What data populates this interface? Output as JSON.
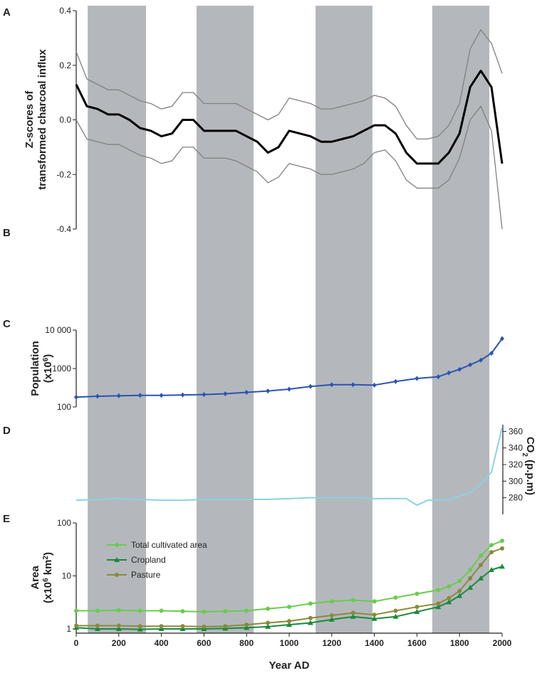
{
  "panel_labels": [
    "A",
    "B",
    "C",
    "D",
    "E"
  ],
  "shaded_periods": [
    [
      54,
      328
    ],
    [
      565,
      833
    ],
    [
      1124,
      1391
    ],
    [
      1672,
      1940
    ]
  ],
  "shade_color": "#b4b8bd",
  "chart_data": [
    {
      "type": "line",
      "ylabel": [
        "Z-scores of",
        "transformed charcoal influx"
      ],
      "xlim": [
        0,
        2000
      ],
      "ylim": [
        -0.4,
        0.4
      ],
      "log_scale": false,
      "y_axis_side": "left",
      "yticks": [
        0.4,
        0.2,
        {
          "value": 0,
          "label": "0.0"
        },
        -0.2,
        -0.4
      ],
      "x": [
        0,
        50,
        100,
        150,
        200,
        250,
        300,
        350,
        400,
        450,
        500,
        550,
        600,
        650,
        700,
        750,
        800,
        850,
        900,
        950,
        1000,
        1050,
        1100,
        1150,
        1200,
        1250,
        1300,
        1350,
        1400,
        1450,
        1500,
        1550,
        1600,
        1650,
        1700,
        1750,
        1800,
        1850,
        1900,
        1950,
        2000
      ],
      "series": [
        {
          "name": "upper",
          "color": "#808080",
          "line_width": 1.3,
          "values": [
            0.25,
            0.15,
            0.13,
            0.11,
            0.11,
            0.09,
            0.07,
            0.06,
            0.04,
            0.05,
            0.1,
            0.1,
            0.06,
            0.06,
            0.06,
            0.06,
            0.04,
            0.02,
            0.0,
            0.02,
            0.08,
            0.07,
            0.06,
            0.04,
            0.04,
            0.05,
            0.06,
            0.07,
            0.09,
            0.08,
            0.05,
            -0.02,
            -0.07,
            -0.07,
            -0.06,
            -0.02,
            0.06,
            0.26,
            0.33,
            0.28,
            0.17
          ]
        },
        {
          "name": "lower",
          "color": "#808080",
          "line_width": 1.3,
          "values": [
            0.0,
            -0.07,
            -0.08,
            -0.09,
            -0.09,
            -0.11,
            -0.13,
            -0.14,
            -0.16,
            -0.15,
            -0.1,
            -0.1,
            -0.14,
            -0.14,
            -0.14,
            -0.15,
            -0.17,
            -0.19,
            -0.23,
            -0.21,
            -0.16,
            -0.17,
            -0.18,
            -0.2,
            -0.2,
            -0.19,
            -0.18,
            -0.16,
            -0.12,
            -0.11,
            -0.15,
            -0.22,
            -0.25,
            -0.25,
            -0.25,
            -0.22,
            -0.14,
            0.0,
            0.05,
            -0.04,
            -0.4
          ]
        },
        {
          "name": "mean",
          "color": "#000000",
          "line_width": 3,
          "values": [
            0.13,
            0.05,
            0.04,
            0.02,
            0.02,
            0.0,
            -0.03,
            -0.04,
            -0.06,
            -0.05,
            0.0,
            0.0,
            -0.04,
            -0.04,
            -0.04,
            -0.04,
            -0.06,
            -0.08,
            -0.12,
            -0.1,
            -0.04,
            -0.05,
            -0.06,
            -0.08,
            -0.08,
            -0.07,
            -0.06,
            -0.04,
            -0.02,
            -0.02,
            -0.05,
            -0.12,
            -0.16,
            -0.16,
            -0.16,
            -0.12,
            -0.05,
            0.12,
            0.18,
            0.12,
            -0.16
          ]
        }
      ]
    },
    {
      "type": "line",
      "ylabel": [
        "Population",
        "(x10",
        "6",
        ")"
      ],
      "xlim": [
        0,
        2000
      ],
      "ylim": [
        100,
        10000
      ],
      "log_scale": true,
      "y_axis_side": "left",
      "yticks": [
        {
          "value": 10000,
          "label": "10 000"
        },
        1000,
        100
      ],
      "x": [
        0,
        100,
        200,
        300,
        400,
        500,
        600,
        700,
        800,
        900,
        1000,
        1100,
        1200,
        1300,
        1400,
        1500,
        1600,
        1700,
        1750,
        1800,
        1850,
        1900,
        1950,
        2000
      ],
      "series": [
        {
          "name": "Population",
          "color": "#2a55b0",
          "line_width": 2,
          "marker": "diamond",
          "values": [
            180,
            190,
            195,
            200,
            200,
            205,
            210,
            220,
            240,
            260,
            290,
            340,
            380,
            380,
            370,
            460,
            550,
            610,
            770,
            950,
            1250,
            1650,
            2500,
            6000
          ]
        }
      ]
    },
    {
      "type": "line",
      "ylabel": [
        "CO",
        "2",
        " (p.p.m)"
      ],
      "xlim": [
        0,
        2000
      ],
      "ylim": [
        260,
        368
      ],
      "log_scale": false,
      "y_axis_side": "right",
      "yticks": [
        360,
        340,
        320,
        300,
        280
      ],
      "x": [
        0,
        100,
        200,
        300,
        400,
        500,
        600,
        700,
        800,
        900,
        1000,
        1100,
        1200,
        1300,
        1400,
        1500,
        1550,
        1600,
        1650,
        1700,
        1750,
        1800,
        1850,
        1900,
        1950,
        2000
      ],
      "series": [
        {
          "name": "CO2",
          "color": "#8ad2e2",
          "line_width": 2,
          "values": [
            277,
            278,
            279,
            278,
            277,
            277,
            278,
            278,
            278,
            278,
            279,
            280,
            280,
            280,
            279,
            279,
            279,
            271,
            277,
            277,
            278,
            282,
            286,
            296,
            311,
            365
          ]
        }
      ]
    },
    {
      "type": "line",
      "ylabel": [
        "Area",
        "(x10",
        "6",
        " km",
        "2",
        ")"
      ],
      "xlabel": "Year AD",
      "xlim": [
        0,
        2000
      ],
      "ylim": [
        0.83,
        100
      ],
      "log_scale": true,
      "y_axis_side": "left",
      "yticks": [
        100,
        10,
        1
      ],
      "xticks": [
        0,
        200,
        400,
        600,
        800,
        1000,
        1200,
        1400,
        1600,
        1800,
        2000
      ],
      "x": [
        0,
        100,
        200,
        300,
        400,
        500,
        600,
        700,
        800,
        900,
        1000,
        1100,
        1200,
        1300,
        1400,
        1500,
        1600,
        1700,
        1750,
        1800,
        1850,
        1900,
        1950,
        2000
      ],
      "series": [
        {
          "name": "Total cultivated area",
          "color": "#6acb4c",
          "line_width": 2,
          "marker": "circle",
          "values": [
            2.2,
            2.2,
            2.25,
            2.2,
            2.2,
            2.15,
            2.1,
            2.15,
            2.2,
            2.4,
            2.6,
            3.0,
            3.3,
            3.5,
            3.3,
            3.9,
            4.6,
            5.4,
            6.3,
            8,
            13,
            24,
            38,
            46
          ]
        },
        {
          "name": "Cropland",
          "color": "#1a8a3a",
          "line_width": 2,
          "marker": "triangle",
          "values": [
            1.05,
            1.0,
            1.0,
            0.98,
            1.0,
            1.0,
            1.0,
            1.02,
            1.05,
            1.1,
            1.2,
            1.3,
            1.5,
            1.7,
            1.55,
            1.7,
            2.1,
            2.6,
            3.2,
            4.2,
            6,
            9,
            13,
            15
          ]
        },
        {
          "name": "Pasture",
          "color": "#8a8a3a",
          "line_width": 2,
          "marker": "circle",
          "values": [
            1.15,
            1.15,
            1.15,
            1.12,
            1.12,
            1.12,
            1.1,
            1.12,
            1.2,
            1.3,
            1.4,
            1.6,
            1.8,
            2.0,
            1.85,
            2.2,
            2.6,
            3.0,
            3.8,
            5.2,
            9,
            16,
            28,
            33
          ]
        }
      ]
    }
  ]
}
